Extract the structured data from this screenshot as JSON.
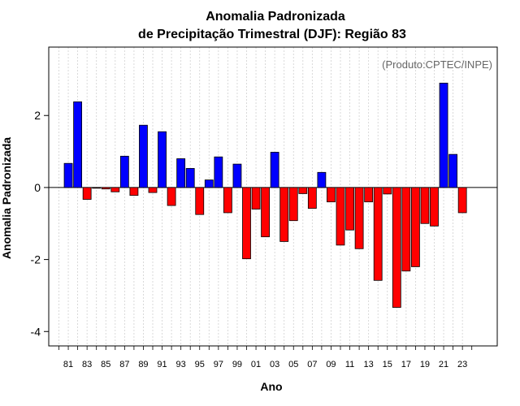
{
  "chart_data": {
    "type": "bar",
    "title_line1": "Anomalia Padronizada",
    "title_line2": "de Precipitação Trimestral (DJF): Região 83",
    "xlabel": "Ano",
    "ylabel": "Anomalia Padronizada",
    "credit": "(Produto:CPTEC/INPE)",
    "ylim": [
      -4.4,
      3.9
    ],
    "y_ticks": [
      -4,
      -2,
      0,
      2
    ],
    "y_tick_labels": [
      "-4",
      "-2",
      "0",
      "2"
    ],
    "x_tick_labels": [
      "81",
      "83",
      "85",
      "87",
      "89",
      "91",
      "93",
      "95",
      "97",
      "99",
      "01",
      "03",
      "05",
      "07",
      "09",
      "11",
      "13",
      "15",
      "17",
      "19",
      "21",
      "23"
    ],
    "positive_color": "#0000ff",
    "negative_color": "#ff0000",
    "categories": [
      "81",
      "82",
      "83",
      "84",
      "85",
      "86",
      "87",
      "88",
      "89",
      "90",
      "91",
      "92",
      "93",
      "94",
      "95",
      "96",
      "97",
      "98",
      "99",
      "00",
      "01",
      "02",
      "03",
      "04",
      "05",
      "06",
      "07",
      "08",
      "09",
      "10",
      "11",
      "12",
      "13",
      "14",
      "15",
      "16",
      "17",
      "18",
      "19",
      "20",
      "21",
      "22",
      "23"
    ],
    "values": [
      0.67,
      2.38,
      -0.33,
      -0.02,
      -0.04,
      -0.12,
      0.87,
      -0.22,
      1.73,
      -0.14,
      1.55,
      -0.5,
      0.8,
      0.53,
      -0.75,
      0.21,
      0.85,
      -0.7,
      0.65,
      -1.98,
      -0.6,
      -1.37,
      0.98,
      -1.5,
      -0.92,
      -0.17,
      -0.58,
      0.42,
      -0.4,
      -1.6,
      -1.18,
      -1.7,
      -0.4,
      -2.58,
      -0.18,
      -3.33,
      -2.32,
      -2.2,
      -1.0,
      -1.07,
      2.9,
      0.92,
      -0.7
    ]
  }
}
